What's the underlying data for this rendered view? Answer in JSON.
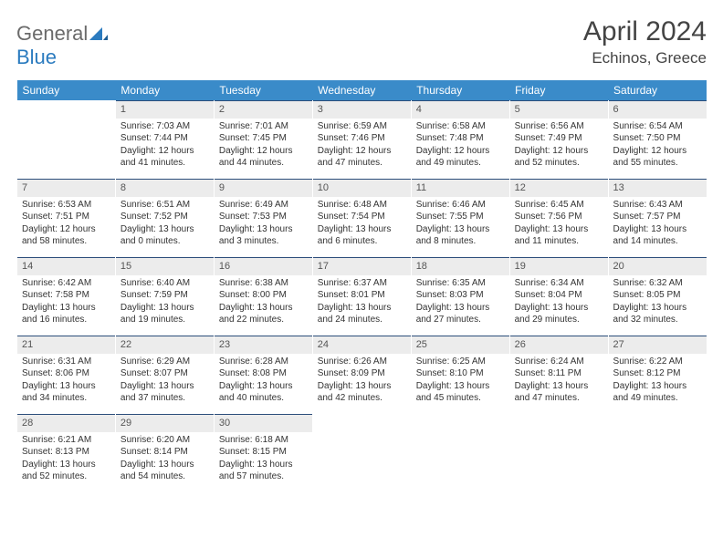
{
  "brand": {
    "part1": "General",
    "part2": "Blue"
  },
  "title": "April 2024",
  "location": "Echinos, Greece",
  "colors": {
    "header_bg": "#3a8bc9",
    "header_text": "#ffffff",
    "daynum_bg": "#ececec",
    "daynum_border": "#2b4d7a",
    "text": "#333333",
    "brand_gray": "#6b6b6b",
    "brand_blue": "#2b7bbf",
    "background": "#ffffff"
  },
  "weekdays": [
    "Sunday",
    "Monday",
    "Tuesday",
    "Wednesday",
    "Thursday",
    "Friday",
    "Saturday"
  ],
  "weeks": [
    [
      null,
      {
        "n": "1",
        "sr": "Sunrise: 7:03 AM",
        "ss": "Sunset: 7:44 PM",
        "d1": "Daylight: 12 hours",
        "d2": "and 41 minutes."
      },
      {
        "n": "2",
        "sr": "Sunrise: 7:01 AM",
        "ss": "Sunset: 7:45 PM",
        "d1": "Daylight: 12 hours",
        "d2": "and 44 minutes."
      },
      {
        "n": "3",
        "sr": "Sunrise: 6:59 AM",
        "ss": "Sunset: 7:46 PM",
        "d1": "Daylight: 12 hours",
        "d2": "and 47 minutes."
      },
      {
        "n": "4",
        "sr": "Sunrise: 6:58 AM",
        "ss": "Sunset: 7:48 PM",
        "d1": "Daylight: 12 hours",
        "d2": "and 49 minutes."
      },
      {
        "n": "5",
        "sr": "Sunrise: 6:56 AM",
        "ss": "Sunset: 7:49 PM",
        "d1": "Daylight: 12 hours",
        "d2": "and 52 minutes."
      },
      {
        "n": "6",
        "sr": "Sunrise: 6:54 AM",
        "ss": "Sunset: 7:50 PM",
        "d1": "Daylight: 12 hours",
        "d2": "and 55 minutes."
      }
    ],
    [
      {
        "n": "7",
        "sr": "Sunrise: 6:53 AM",
        "ss": "Sunset: 7:51 PM",
        "d1": "Daylight: 12 hours",
        "d2": "and 58 minutes."
      },
      {
        "n": "8",
        "sr": "Sunrise: 6:51 AM",
        "ss": "Sunset: 7:52 PM",
        "d1": "Daylight: 13 hours",
        "d2": "and 0 minutes."
      },
      {
        "n": "9",
        "sr": "Sunrise: 6:49 AM",
        "ss": "Sunset: 7:53 PM",
        "d1": "Daylight: 13 hours",
        "d2": "and 3 minutes."
      },
      {
        "n": "10",
        "sr": "Sunrise: 6:48 AM",
        "ss": "Sunset: 7:54 PM",
        "d1": "Daylight: 13 hours",
        "d2": "and 6 minutes."
      },
      {
        "n": "11",
        "sr": "Sunrise: 6:46 AM",
        "ss": "Sunset: 7:55 PM",
        "d1": "Daylight: 13 hours",
        "d2": "and 8 minutes."
      },
      {
        "n": "12",
        "sr": "Sunrise: 6:45 AM",
        "ss": "Sunset: 7:56 PM",
        "d1": "Daylight: 13 hours",
        "d2": "and 11 minutes."
      },
      {
        "n": "13",
        "sr": "Sunrise: 6:43 AM",
        "ss": "Sunset: 7:57 PM",
        "d1": "Daylight: 13 hours",
        "d2": "and 14 minutes."
      }
    ],
    [
      {
        "n": "14",
        "sr": "Sunrise: 6:42 AM",
        "ss": "Sunset: 7:58 PM",
        "d1": "Daylight: 13 hours",
        "d2": "and 16 minutes."
      },
      {
        "n": "15",
        "sr": "Sunrise: 6:40 AM",
        "ss": "Sunset: 7:59 PM",
        "d1": "Daylight: 13 hours",
        "d2": "and 19 minutes."
      },
      {
        "n": "16",
        "sr": "Sunrise: 6:38 AM",
        "ss": "Sunset: 8:00 PM",
        "d1": "Daylight: 13 hours",
        "d2": "and 22 minutes."
      },
      {
        "n": "17",
        "sr": "Sunrise: 6:37 AM",
        "ss": "Sunset: 8:01 PM",
        "d1": "Daylight: 13 hours",
        "d2": "and 24 minutes."
      },
      {
        "n": "18",
        "sr": "Sunrise: 6:35 AM",
        "ss": "Sunset: 8:03 PM",
        "d1": "Daylight: 13 hours",
        "d2": "and 27 minutes."
      },
      {
        "n": "19",
        "sr": "Sunrise: 6:34 AM",
        "ss": "Sunset: 8:04 PM",
        "d1": "Daylight: 13 hours",
        "d2": "and 29 minutes."
      },
      {
        "n": "20",
        "sr": "Sunrise: 6:32 AM",
        "ss": "Sunset: 8:05 PM",
        "d1": "Daylight: 13 hours",
        "d2": "and 32 minutes."
      }
    ],
    [
      {
        "n": "21",
        "sr": "Sunrise: 6:31 AM",
        "ss": "Sunset: 8:06 PM",
        "d1": "Daylight: 13 hours",
        "d2": "and 34 minutes."
      },
      {
        "n": "22",
        "sr": "Sunrise: 6:29 AM",
        "ss": "Sunset: 8:07 PM",
        "d1": "Daylight: 13 hours",
        "d2": "and 37 minutes."
      },
      {
        "n": "23",
        "sr": "Sunrise: 6:28 AM",
        "ss": "Sunset: 8:08 PM",
        "d1": "Daylight: 13 hours",
        "d2": "and 40 minutes."
      },
      {
        "n": "24",
        "sr": "Sunrise: 6:26 AM",
        "ss": "Sunset: 8:09 PM",
        "d1": "Daylight: 13 hours",
        "d2": "and 42 minutes."
      },
      {
        "n": "25",
        "sr": "Sunrise: 6:25 AM",
        "ss": "Sunset: 8:10 PM",
        "d1": "Daylight: 13 hours",
        "d2": "and 45 minutes."
      },
      {
        "n": "26",
        "sr": "Sunrise: 6:24 AM",
        "ss": "Sunset: 8:11 PM",
        "d1": "Daylight: 13 hours",
        "d2": "and 47 minutes."
      },
      {
        "n": "27",
        "sr": "Sunrise: 6:22 AM",
        "ss": "Sunset: 8:12 PM",
        "d1": "Daylight: 13 hours",
        "d2": "and 49 minutes."
      }
    ],
    [
      {
        "n": "28",
        "sr": "Sunrise: 6:21 AM",
        "ss": "Sunset: 8:13 PM",
        "d1": "Daylight: 13 hours",
        "d2": "and 52 minutes."
      },
      {
        "n": "29",
        "sr": "Sunrise: 6:20 AM",
        "ss": "Sunset: 8:14 PM",
        "d1": "Daylight: 13 hours",
        "d2": "and 54 minutes."
      },
      {
        "n": "30",
        "sr": "Sunrise: 6:18 AM",
        "ss": "Sunset: 8:15 PM",
        "d1": "Daylight: 13 hours",
        "d2": "and 57 minutes."
      },
      null,
      null,
      null,
      null
    ]
  ]
}
